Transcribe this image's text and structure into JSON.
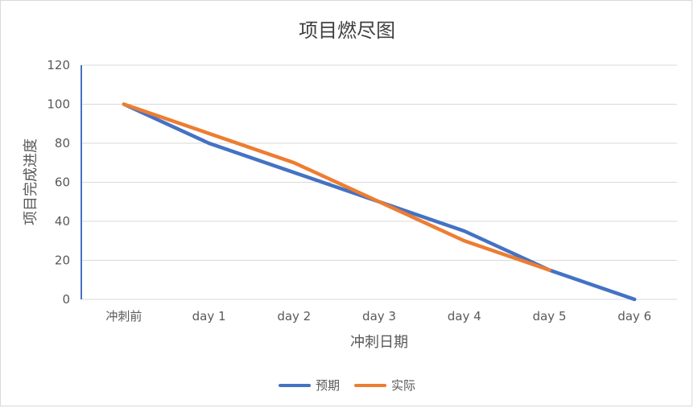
{
  "chart_data": {
    "type": "line",
    "title": "项目燃尽图",
    "xlabel": "冲刺日期",
    "ylabel": "项目完成进度",
    "categories": [
      "冲刺前",
      "day 1",
      "day 2",
      "day 3",
      "day 4",
      "day 5",
      "day 6"
    ],
    "ylim": [
      0,
      120
    ],
    "yticks": [
      "0",
      "20",
      "40",
      "60",
      "80",
      "100",
      "120"
    ],
    "grid": true,
    "legend_position": "bottom",
    "series": [
      {
        "name": "预期",
        "color": "#4472C4",
        "values": [
          100,
          80,
          65,
          50,
          35,
          15,
          0
        ]
      },
      {
        "name": "实际",
        "color": "#ED7D31",
        "values": [
          100,
          85,
          70,
          50,
          30,
          15,
          null
        ]
      }
    ]
  }
}
